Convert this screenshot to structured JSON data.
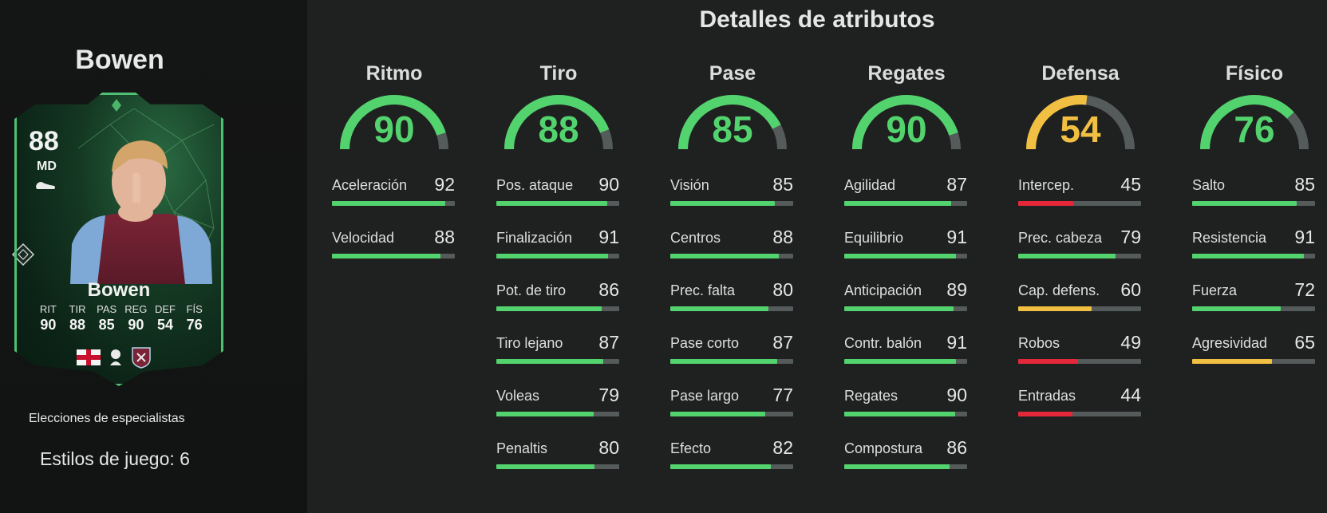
{
  "colors": {
    "green": "#53d36d",
    "yellow": "#f1bf41",
    "red": "#e5273a",
    "track": "#555a5a"
  },
  "player": {
    "name": "Bowen",
    "card": {
      "rating": "88",
      "position": "MD",
      "name": "Bowen",
      "stats": [
        {
          "label": "RIT",
          "value": "90"
        },
        {
          "label": "TIR",
          "value": "88"
        },
        {
          "label": "PAS",
          "value": "85"
        },
        {
          "label": "REG",
          "value": "90"
        },
        {
          "label": "DEF",
          "value": "54"
        },
        {
          "label": "FÍS",
          "value": "76"
        }
      ],
      "icons": [
        "boot-icon",
        "england-flag-icon",
        "premier-league-icon",
        "west-ham-crest-icon",
        "card-style-badge-icon"
      ]
    },
    "specialist_label": "Elecciones de especialistas",
    "playstyles": "Estilos de juego: 6"
  },
  "details_title": "Detalles de atributos",
  "categories": [
    {
      "name": "Ritmo",
      "value": 90,
      "color": "green",
      "attributes": [
        {
          "label": "Aceleración",
          "value": 92,
          "color": "green"
        },
        {
          "label": "Velocidad",
          "value": 88,
          "color": "green"
        }
      ]
    },
    {
      "name": "Tiro",
      "value": 88,
      "color": "green",
      "attributes": [
        {
          "label": "Pos. ataque",
          "value": 90,
          "color": "green"
        },
        {
          "label": "Finalización",
          "value": 91,
          "color": "green"
        },
        {
          "label": "Pot. de tiro",
          "value": 86,
          "color": "green"
        },
        {
          "label": "Tiro lejano",
          "value": 87,
          "color": "green"
        },
        {
          "label": "Voleas",
          "value": 79,
          "color": "green"
        },
        {
          "label": "Penaltis",
          "value": 80,
          "color": "green"
        }
      ]
    },
    {
      "name": "Pase",
      "value": 85,
      "color": "green",
      "attributes": [
        {
          "label": "Visión",
          "value": 85,
          "color": "green"
        },
        {
          "label": "Centros",
          "value": 88,
          "color": "green"
        },
        {
          "label": "Prec. falta",
          "value": 80,
          "color": "green"
        },
        {
          "label": "Pase corto",
          "value": 87,
          "color": "green"
        },
        {
          "label": "Pase largo",
          "value": 77,
          "color": "green"
        },
        {
          "label": "Efecto",
          "value": 82,
          "color": "green"
        }
      ]
    },
    {
      "name": "Regates",
      "value": 90,
      "color": "green",
      "attributes": [
        {
          "label": "Agilidad",
          "value": 87,
          "color": "green"
        },
        {
          "label": "Equilibrio",
          "value": 91,
          "color": "green"
        },
        {
          "label": "Anticipación",
          "value": 89,
          "color": "green"
        },
        {
          "label": "Contr. balón",
          "value": 91,
          "color": "green"
        },
        {
          "label": "Regates",
          "value": 90,
          "color": "green"
        },
        {
          "label": "Compostura",
          "value": 86,
          "color": "green"
        }
      ]
    },
    {
      "name": "Defensa",
      "value": 54,
      "color": "yellow",
      "attributes": [
        {
          "label": "Intercep.",
          "value": 45,
          "color": "red"
        },
        {
          "label": "Prec. cabeza",
          "value": 79,
          "color": "green"
        },
        {
          "label": "Cap. defens.",
          "value": 60,
          "color": "yellow"
        },
        {
          "label": "Robos",
          "value": 49,
          "color": "red"
        },
        {
          "label": "Entradas",
          "value": 44,
          "color": "red"
        }
      ]
    },
    {
      "name": "Físico",
      "value": 76,
      "color": "green",
      "attributes": [
        {
          "label": "Salto",
          "value": 85,
          "color": "green"
        },
        {
          "label": "Resistencia",
          "value": 91,
          "color": "green"
        },
        {
          "label": "Fuerza",
          "value": 72,
          "color": "green"
        },
        {
          "label": "Agresividad",
          "value": 65,
          "color": "yellow"
        }
      ]
    }
  ]
}
